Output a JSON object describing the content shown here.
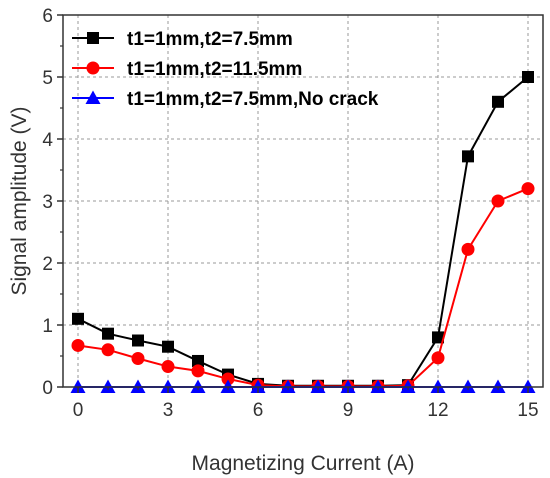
{
  "chart_data": {
    "type": "line",
    "title": "",
    "xlabel": "Magnetizing Current (A)",
    "ylabel": "Signal amplitude (V)",
    "xlim": [
      -0.5,
      15.5
    ],
    "ylim": [
      0,
      6
    ],
    "x_ticks": [
      0,
      3,
      6,
      9,
      12,
      15
    ],
    "y_ticks": [
      0,
      1,
      2,
      3,
      4,
      5,
      6
    ],
    "grid": true,
    "legend_position": "top-left",
    "x": [
      0,
      1,
      2,
      3,
      4,
      5,
      6,
      7,
      8,
      9,
      10,
      11,
      12,
      13,
      14,
      15
    ],
    "series": [
      {
        "name": "t1=1mm,t2=7.5mm",
        "color": "#000000",
        "marker": "square",
        "values": [
          1.1,
          0.86,
          0.75,
          0.65,
          0.42,
          0.2,
          0.05,
          0.02,
          0.02,
          0.02,
          0.02,
          0.03,
          0.8,
          3.72,
          4.6,
          5.0
        ]
      },
      {
        "name": "t1=1mm,t2=11.5mm",
        "color": "#ff0000",
        "marker": "circle",
        "values": [
          0.67,
          0.6,
          0.46,
          0.33,
          0.26,
          0.13,
          0.03,
          0.01,
          0.01,
          0.01,
          0.01,
          0.02,
          0.47,
          2.22,
          3.0,
          3.2
        ]
      },
      {
        "name": "t1=1mm,t2=7.5mm,No crack",
        "color": "#0000ff",
        "marker": "triangle",
        "values": [
          0,
          0,
          0,
          0,
          0,
          0,
          0,
          0,
          0,
          0,
          0,
          0,
          0,
          0,
          0,
          0
        ]
      }
    ]
  }
}
